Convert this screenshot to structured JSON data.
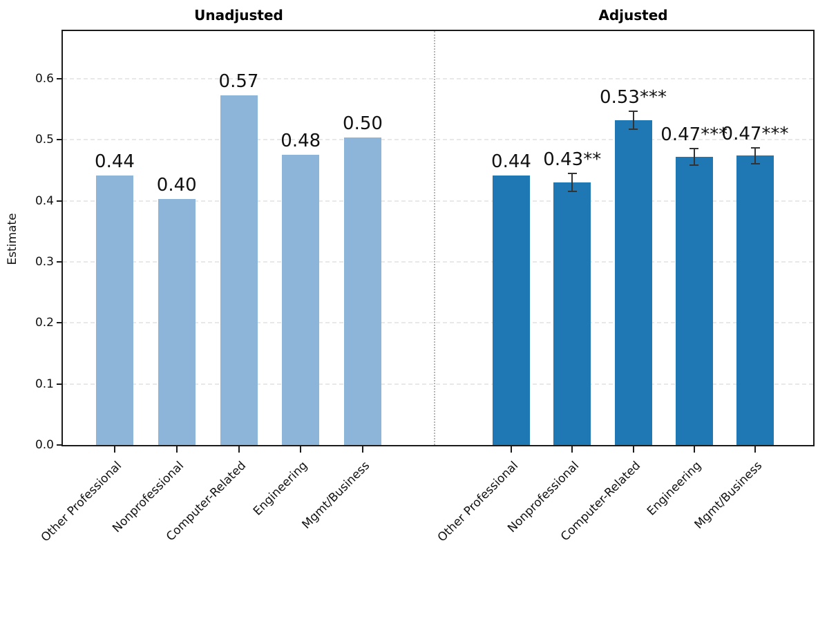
{
  "chart_data": {
    "type": "bar",
    "ylabel": "Estimate",
    "ylim": [
      0,
      0.678
    ],
    "yticks": [
      0.0,
      0.1,
      0.2,
      0.3,
      0.4,
      0.5,
      0.6
    ],
    "ytick_labels": [
      "0.0",
      "0.1",
      "0.2",
      "0.3",
      "0.4",
      "0.5",
      "0.6"
    ],
    "grid": true,
    "categories": [
      "Other Professional",
      "Nonprofessional",
      "Computer-Related",
      "Engineering",
      "Mgmt/Business"
    ],
    "panels": [
      {
        "title": "Unadjusted",
        "bar_color": "#8db5da",
        "bars": [
          {
            "category": "Other Professional",
            "value": 0.441,
            "label": "0.44",
            "error": null
          },
          {
            "category": "Nonprofessional",
            "value": 0.403,
            "label": "0.40",
            "error": null
          },
          {
            "category": "Computer-Related",
            "value": 0.573,
            "label": "0.57",
            "error": null
          },
          {
            "category": "Engineering",
            "value": 0.476,
            "label": "0.48",
            "error": null
          },
          {
            "category": "Mgmt/Business",
            "value": 0.504,
            "label": "0.50",
            "error": null
          }
        ]
      },
      {
        "title": "Adjusted",
        "bar_color": "#1f77b4",
        "bars": [
          {
            "category": "Other Professional",
            "value": 0.441,
            "label": "0.44",
            "error": null
          },
          {
            "category": "Nonprofessional",
            "value": 0.43,
            "label": "0.43**",
            "error": 0.015
          },
          {
            "category": "Computer-Related",
            "value": 0.532,
            "label": "0.53***",
            "error": 0.015
          },
          {
            "category": "Engineering",
            "value": 0.472,
            "label": "0.47***",
            "error": 0.014
          },
          {
            "category": "Mgmt/Business",
            "value": 0.474,
            "label": "0.47***",
            "error": 0.013
          }
        ]
      }
    ],
    "colors": {
      "unadjusted_bar": "#8db5da",
      "adjusted_bar": "#1f77b4",
      "error_bar": "#333333",
      "gridline": "#e8e8e8",
      "divider": "#b5b5b5",
      "spine": "#1a1a1a",
      "text": "#111111"
    },
    "legend": null
  }
}
